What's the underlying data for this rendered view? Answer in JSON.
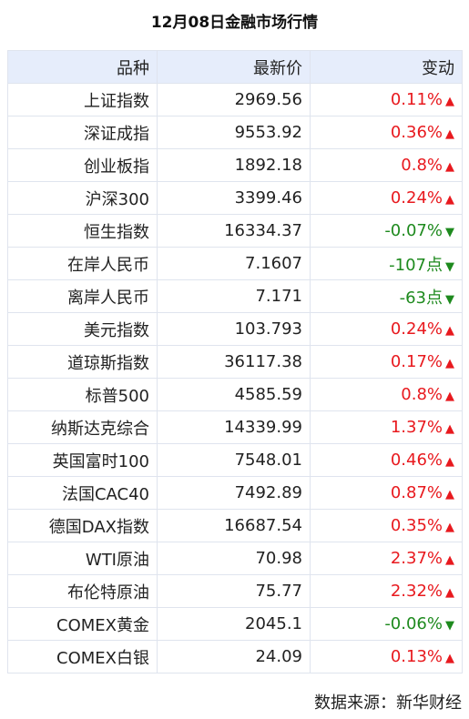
{
  "title": "12月08日金融市场行情",
  "table": {
    "header": [
      "品种",
      "最新价",
      "变动"
    ],
    "rows": [
      {
        "name": "上证指数",
        "price": "2969.56",
        "change": "0.11%",
        "arrow": "▲",
        "color": "#e8191e"
      },
      {
        "name": "深证成指",
        "price": "9553.92",
        "change": "0.36%",
        "arrow": "▲",
        "color": "#e8191e"
      },
      {
        "name": "创业板指",
        "price": "1892.18",
        "change": "0.8%",
        "arrow": "▲",
        "color": "#e8191e"
      },
      {
        "name": "沪深300",
        "price": "3399.46",
        "change": "0.24%",
        "arrow": "▲",
        "color": "#e8191e"
      },
      {
        "name": "恒生指数",
        "price": "16334.37",
        "change": "-0.07%",
        "arrow": "▼",
        "color": "#1e8a1e"
      },
      {
        "name": "在岸人民币",
        "price": "7.1607",
        "change": "-107点",
        "arrow": "▼",
        "color": "#1e8a1e"
      },
      {
        "name": "离岸人民币",
        "price": "7.171",
        "change": "-63点",
        "arrow": "▼",
        "color": "#1e8a1e"
      },
      {
        "name": "美元指数",
        "price": "103.793",
        "change": "0.24%",
        "arrow": "▲",
        "color": "#e8191e"
      },
      {
        "name": "道琼斯指数",
        "price": "36117.38",
        "change": "0.17%",
        "arrow": "▲",
        "color": "#e8191e"
      },
      {
        "name": "标普500",
        "price": "4585.59",
        "change": "0.8%",
        "arrow": "▲",
        "color": "#e8191e"
      },
      {
        "name": "纳斯达克综合",
        "price": "14339.99",
        "change": "1.37%",
        "arrow": "▲",
        "color": "#e8191e"
      },
      {
        "name": "英国富时100",
        "price": "7548.01",
        "change": "0.46%",
        "arrow": "▲",
        "color": "#e8191e"
      },
      {
        "name": "法国CAC40",
        "price": "7492.89",
        "change": "0.87%",
        "arrow": "▲",
        "color": "#e8191e"
      },
      {
        "name": "德国DAX指数",
        "price": "16687.54",
        "change": "0.35%",
        "arrow": "▲",
        "color": "#e8191e"
      },
      {
        "name": "WTI原油",
        "price": "70.98",
        "change": "2.37%",
        "arrow": "▲",
        "color": "#e8191e"
      },
      {
        "name": "布伦特原油",
        "price": "75.77",
        "change": "2.32%",
        "arrow": "▲",
        "color": "#e8191e"
      },
      {
        "name": "COMEX黄金",
        "price": "2045.1",
        "change": "-0.06%",
        "arrow": "▼",
        "color": "#1e8a1e"
      },
      {
        "name": "COMEX白银",
        "price": "24.09",
        "change": "0.13%",
        "arrow": "▲",
        "color": "#e8191e"
      }
    ]
  },
  "source": "数据来源：新华财经"
}
